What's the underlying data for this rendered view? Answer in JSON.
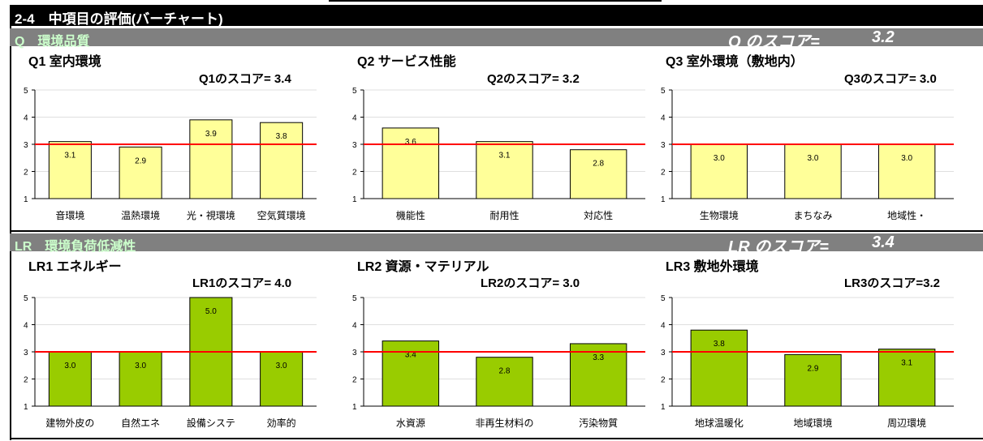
{
  "header": {
    "title": "2-4　中項目の評価(バーチャート)"
  },
  "sections": [
    {
      "id": "Q",
      "label": "Q　環境品質",
      "score_label": "Q のスコア=",
      "score_value": "3.2",
      "bar_color": "#ffff99",
      "panels": [
        {
          "title": "Q1 室内環境",
          "score_text": "Q1のスコア=  3.4",
          "chart_data": {
            "type": "bar",
            "categories": [
              "音環境",
              "温熱環境",
              "光・視環境",
              "空気質環境"
            ],
            "values": [
              3.1,
              2.9,
              3.9,
              3.8
            ],
            "value_labels": [
              "3.1",
              "2.9",
              "3.9",
              "3.8"
            ],
            "ylim": [
              1,
              5
            ],
            "yticks": [
              "1",
              "2",
              "3",
              "4",
              "5"
            ],
            "reference_line": 3
          }
        },
        {
          "title": "Q2 サービス性能",
          "score_text": "Q2のスコア= 3.2",
          "chart_data": {
            "type": "bar",
            "categories": [
              "機能性",
              "耐用性",
              "対応性"
            ],
            "values": [
              3.6,
              3.1,
              2.8
            ],
            "value_labels": [
              "3.6",
              "3.1",
              "2.8"
            ],
            "ylim": [
              1,
              5
            ],
            "yticks": [
              "1",
              "2",
              "3",
              "4",
              "5"
            ],
            "reference_line": 3
          }
        },
        {
          "title": "Q3 室外環境（敷地内）",
          "score_text": "Q3のスコア=  3.0",
          "chart_data": {
            "type": "bar",
            "categories": [
              "生物環境",
              "まちなみ",
              "地域性・"
            ],
            "values": [
              3.0,
              3.0,
              3.0
            ],
            "value_labels": [
              "3.0",
              "3.0",
              "3.0"
            ],
            "ylim": [
              1,
              5
            ],
            "yticks": [
              "1",
              "2",
              "3",
              "4",
              "5"
            ],
            "reference_line": 3
          }
        }
      ]
    },
    {
      "id": "LR",
      "label": "LR　環境負荷低減性",
      "score_label": "LR のスコア=",
      "score_value": "3.4",
      "bar_color": "#99cc00",
      "panels": [
        {
          "title": "LR1 エネルギー",
          "score_text": "LR1のスコア=  4.0",
          "chart_data": {
            "type": "bar",
            "categories": [
              "建物外皮の",
              "自然エネ",
              "設備システ",
              "効率的"
            ],
            "values": [
              3.0,
              3.0,
              5.0,
              3.0
            ],
            "value_labels": [
              "3.0",
              "3.0",
              "5.0",
              "3.0"
            ],
            "ylim": [
              1,
              5
            ],
            "yticks": [
              "1",
              "2",
              "3",
              "4",
              "5"
            ],
            "reference_line": 3
          }
        },
        {
          "title": "LR2 資源・マテリアル",
          "score_text": "LR2のスコア=  3.0",
          "chart_data": {
            "type": "bar",
            "categories": [
              "水資源",
              "非再生材料の",
              "汚染物質"
            ],
            "values": [
              3.4,
              2.8,
              3.3
            ],
            "value_labels": [
              "3.4",
              "2.8",
              "3.3"
            ],
            "ylim": [
              1,
              5
            ],
            "yticks": [
              "1",
              "2",
              "3",
              "4",
              "5"
            ],
            "reference_line": 3
          }
        },
        {
          "title": "LR3 敷地外環境",
          "score_text": "LR3のスコア=3.2",
          "chart_data": {
            "type": "bar",
            "categories": [
              "地球温暖化",
              "地域環境",
              "周辺環境"
            ],
            "values": [
              3.8,
              2.9,
              3.1
            ],
            "value_labels": [
              "3.8",
              "2.9",
              "3.1"
            ],
            "ylim": [
              1,
              5
            ],
            "yticks": [
              "1",
              "2",
              "3",
              "4",
              "5"
            ],
            "reference_line": 3
          }
        }
      ]
    }
  ],
  "colors": {
    "reference_line": "#ff0000",
    "section_bar": "#808080",
    "section_label": "#ccffcc",
    "title_bar": "#000000"
  }
}
